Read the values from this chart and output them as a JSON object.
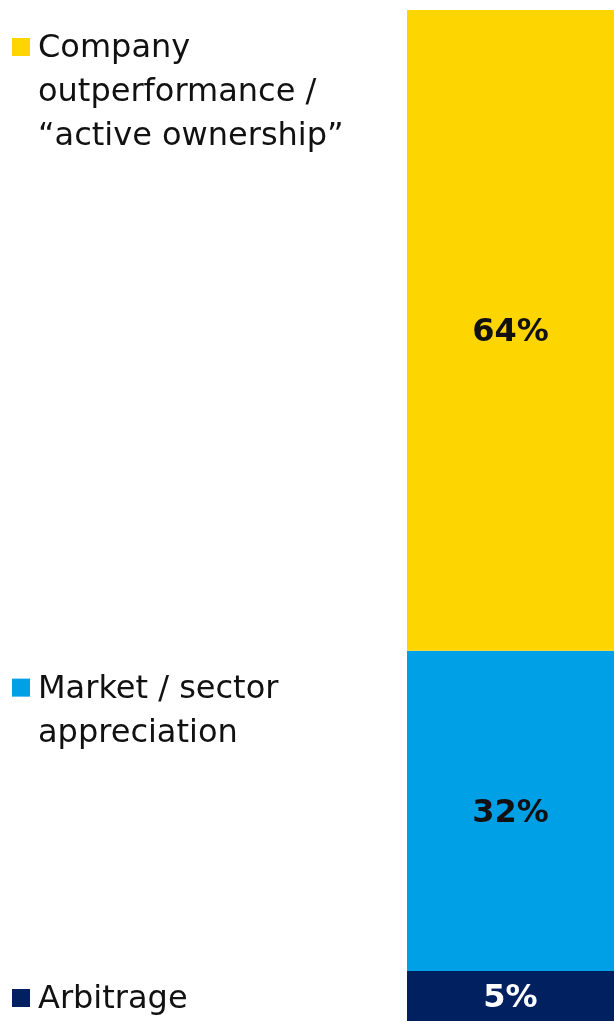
{
  "chart_data": {
    "type": "bar",
    "stacked": true,
    "categories": [
      null
    ],
    "legend": "left",
    "series": [
      {
        "name": "Arbitrage",
        "color": "#002060",
        "values": [
          5
        ],
        "value_labels": [
          "5%"
        ]
      },
      {
        "name": "Market / sector appreciation",
        "color": "#00a0e6",
        "values": [
          32
        ],
        "value_labels": [
          "32%"
        ]
      },
      {
        "name": "Company outperformance / “active ownership”",
        "color": "#fdd500",
        "values": [
          64
        ],
        "value_labels": [
          "64%"
        ]
      }
    ]
  }
}
